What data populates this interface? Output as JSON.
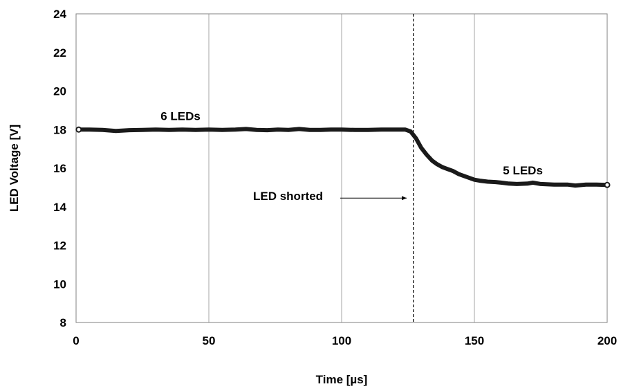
{
  "chart_data": {
    "type": "line",
    "title": "",
    "xlabel": "Time  [µs]",
    "ylabel": "LED Voltage  [V]",
    "xlim": [
      0,
      200
    ],
    "ylim": [
      8,
      24
    ],
    "x_ticks": [
      0,
      50,
      100,
      150,
      200
    ],
    "y_ticks": [
      8,
      10,
      12,
      14,
      16,
      18,
      20,
      22,
      24
    ],
    "grid": "vertical",
    "series": [
      {
        "x": [
          1,
          5,
          10,
          15,
          20,
          25,
          30,
          35,
          40,
          45,
          50,
          55,
          60,
          64,
          68,
          72,
          76,
          80,
          84,
          88,
          92,
          96,
          100,
          105,
          110,
          115,
          120,
          124,
          126,
          128,
          130,
          132,
          134,
          136,
          138,
          140,
          142,
          144,
          146,
          148,
          150,
          152,
          155,
          158,
          160,
          163,
          166,
          170,
          172,
          175,
          180,
          185,
          188,
          192,
          196,
          200
        ],
        "y": [
          18.0,
          18.0,
          17.98,
          17.93,
          17.97,
          17.98,
          18.0,
          17.98,
          18.0,
          17.98,
          18.0,
          17.98,
          18.0,
          18.03,
          17.98,
          17.97,
          18.0,
          17.98,
          18.03,
          17.98,
          17.98,
          18.0,
          18.0,
          17.98,
          17.98,
          18.0,
          18.0,
          18.0,
          17.9,
          17.55,
          17.05,
          16.7,
          16.4,
          16.2,
          16.05,
          15.95,
          15.85,
          15.7,
          15.6,
          15.5,
          15.4,
          15.35,
          15.3,
          15.28,
          15.25,
          15.2,
          15.18,
          15.2,
          15.25,
          15.18,
          15.15,
          15.15,
          15.1,
          15.15,
          15.15,
          15.13
        ]
      }
    ],
    "marker_line_x": 127,
    "annotations": [
      {
        "text": "6 LEDs",
        "x": 36,
        "y": 18.7
      },
      {
        "text": "5 LEDs",
        "x": 167,
        "y": 15.9
      },
      {
        "text": "LED shorted",
        "x": 70,
        "y": 14.5
      }
    ],
    "arrow": {
      "from": [
        100,
        14.45
      ],
      "to": [
        125,
        14.45
      ]
    }
  }
}
